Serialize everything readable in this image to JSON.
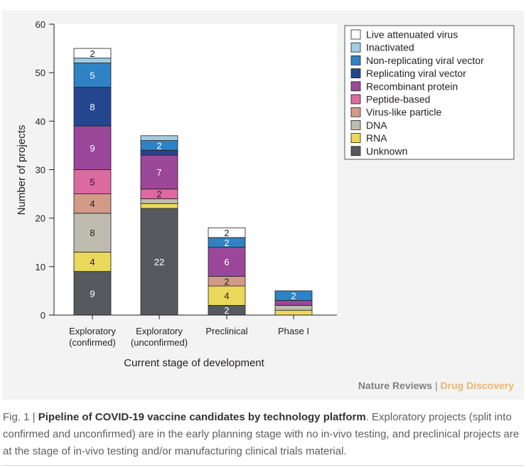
{
  "chart_data": {
    "type": "bar",
    "stacked": true,
    "xlabel": "Current stage of development",
    "ylabel": "Number of projects",
    "ylim": [
      0,
      60
    ],
    "yticks": [
      0,
      10,
      20,
      30,
      40,
      50,
      60
    ],
    "grid": false,
    "legend_position": "top-right",
    "categories": [
      [
        "Exploratory",
        "(confirmed)"
      ],
      [
        "Exploratory",
        "(unconfirmed)"
      ],
      [
        "Preclinical"
      ],
      [
        "Phase I"
      ]
    ],
    "series": [
      {
        "name": "Unknown",
        "color": "#565a5e",
        "label_color": "#ffffff",
        "values": [
          9,
          22,
          2,
          0
        ]
      },
      {
        "name": "RNA",
        "color": "#ead85a",
        "label_color": "#231f20",
        "values": [
          4,
          1,
          4,
          1
        ]
      },
      {
        "name": "DNA",
        "color": "#bdbcae",
        "label_color": "#231f20",
        "values": [
          8,
          1,
          0,
          1
        ]
      },
      {
        "name": "Virus-like particle",
        "color": "#d39a88",
        "label_color": "#231f20",
        "values": [
          4,
          0,
          2,
          0
        ]
      },
      {
        "name": "Peptide-based",
        "color": "#dd69a1",
        "label_color": "#231f20",
        "values": [
          5,
          2,
          0,
          0
        ]
      },
      {
        "name": "Recombinant protein",
        "color": "#9b479a",
        "label_color": "#ffffff",
        "values": [
          9,
          7,
          6,
          1
        ]
      },
      {
        "name": "Replicating viral vector",
        "color": "#23468f",
        "label_color": "#ffffff",
        "values": [
          8,
          1,
          0,
          0
        ]
      },
      {
        "name": "Non-replicating viral vector",
        "color": "#2f82c3",
        "label_color": "#ffffff",
        "values": [
          5,
          2,
          2,
          2
        ]
      },
      {
        "name": "Inactivated",
        "color": "#9fcde8",
        "label_color": "#231f20",
        "values": [
          1,
          1,
          0,
          0
        ]
      },
      {
        "name": "Live attenuated virus",
        "color": "#ffffff",
        "label_color": "#231f20",
        "values": [
          2,
          0,
          2,
          0
        ]
      }
    ],
    "data_labels": [
      [
        "9",
        "4",
        "8",
        "4",
        "5",
        "9",
        "8",
        "5",
        "",
        "2"
      ],
      [
        "22",
        "",
        "",
        "",
        "2",
        "7",
        "",
        "2",
        "",
        ""
      ],
      [
        "2",
        "4",
        "",
        "2",
        "",
        "6",
        "",
        "2",
        "",
        "2"
      ],
      [
        "",
        "",
        "",
        "",
        "",
        "",
        "",
        "2",
        "",
        ""
      ]
    ]
  },
  "credit": {
    "publisher": "Nature Reviews",
    "separator": "|",
    "journal": "Drug Discovery"
  },
  "caption": {
    "prefix": "Fig. 1 | ",
    "title": "Pipeline of COVID-19 vaccine candidates by technology platform",
    "body": ". Exploratory projects (split into confirmed and unconfirmed) are in the early planning stage with no in-vivo testing, and preclinical projects are at the stage of in-vivo testing and/or manufacturing clinical trials material."
  }
}
